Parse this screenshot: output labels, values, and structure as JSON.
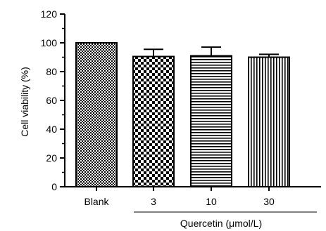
{
  "chart_data": {
    "type": "bar",
    "title": "",
    "ylabel": "Cell viability (%)",
    "xlabel": "",
    "group_label": "Quercetin (μmol/L)",
    "group_categories": [
      "3",
      "10",
      "30"
    ],
    "categories": [
      "Blank",
      "3",
      "10",
      "30"
    ],
    "values": [
      100,
      90.5,
      91,
      90
    ],
    "errors": [
      0,
      5,
      6,
      2
    ],
    "patterns": [
      "fine-checker",
      "checker",
      "horizontal-lines",
      "vertical-lines"
    ],
    "ylim": [
      0,
      120
    ],
    "yticks": [
      0,
      20,
      40,
      60,
      80,
      100,
      120
    ],
    "grid": false,
    "legend": "none",
    "colors": {
      "bar_stroke": "#000000",
      "pattern": "#000000",
      "background": "#ffffff"
    }
  }
}
